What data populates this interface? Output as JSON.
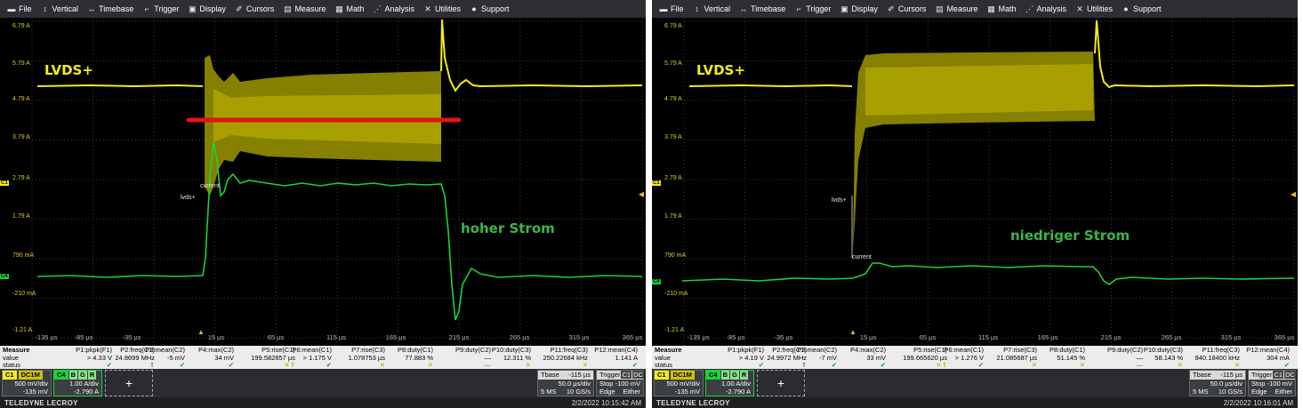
{
  "menu": [
    {
      "label": "File",
      "icon": "file-icon"
    },
    {
      "label": "Vertical",
      "icon": "vertical-icon"
    },
    {
      "label": "Timebase",
      "icon": "timebase-icon"
    },
    {
      "label": "Trigger",
      "icon": "trigger-icon"
    },
    {
      "label": "Display",
      "icon": "display-icon"
    },
    {
      "label": "Cursors",
      "icon": "cursors-icon"
    },
    {
      "label": "Measure",
      "icon": "measure-icon"
    },
    {
      "label": "Math",
      "icon": "math-icon"
    },
    {
      "label": "Analysis",
      "icon": "analysis-icon"
    },
    {
      "label": "Utilities",
      "icon": "utilities-icon"
    },
    {
      "label": "Support",
      "icon": "support-icon"
    }
  ],
  "colors": {
    "c1_yellow": "#f2ec1a",
    "c4_green": "#19d23c",
    "annotation_red": "#e01515",
    "grid": "#3a3a3a",
    "plot_bg": "#000000"
  },
  "y_axis_labels": [
    "6.79 A",
    "5.79 A",
    "4.79 A",
    "3.79 A",
    "2.79 A",
    "1.79 A",
    "790 mA",
    "-210 mA",
    "-1.21 A"
  ],
  "x_axis_labels": [
    "-135 µs",
    "-85 µs",
    "-35 µs",
    "15 µs",
    "65 µs",
    "115 µs",
    "165 µs",
    "215 µs",
    "265 µs",
    "315 µs",
    "365 µs"
  ],
  "trigger_marker": "▲",
  "trigger_level_marker": "◀",
  "channel_markers": {
    "c1": "C1",
    "c4": "C4"
  },
  "probe_labels": {
    "lvds": "lvds+",
    "current": "current"
  },
  "measure_rows": {
    "head": "Measure",
    "value": "value",
    "status": "status"
  },
  "measure_headers": [
    "P1:pkpk(F1)",
    "P2:freq(C1)",
    "P3:mean(C2)",
    "P4:max(C2)",
    "P5:rise(C1)",
    "P6:mean(C1)",
    "P7:rise(C3)",
    "P8:duty(C1)",
    "P9:duty(C2)",
    "P10:duty(C3)",
    "P11:freq(C3)",
    "P12:mean(C4)"
  ],
  "status_icons": [
    "✔",
    "⇑",
    "✔",
    "✔",
    "✕⇑",
    "✔",
    "✕",
    "✕",
    "—",
    "✕",
    "✕",
    "✔"
  ],
  "channel_c1": {
    "tag": "C1",
    "coupling": "DC1M",
    "scale": "500 mV/div",
    "offset": "-135 mV"
  },
  "channel_c4": {
    "tag": "C4",
    "badges": [
      "B",
      "G",
      "R"
    ],
    "scale": "1.00 A/div",
    "offset": "-2.790 A"
  },
  "add_button": "+",
  "timebase": {
    "label": "Tbase",
    "delay": "-115 µs",
    "scale": "50.0 µs/div",
    "samples": "5 MS",
    "rate": "10 GS/s"
  },
  "trigger": {
    "label": "Trigger",
    "badges": [
      "C1",
      "DC"
    ],
    "mode": "Stop",
    "level": "-100 mV",
    "type": "Edge",
    "slope": "Either"
  },
  "brand": "TELEDYNE LECROY",
  "screens": [
    {
      "signal_label": "LVDS+",
      "annotation": "hoher Strom",
      "measure_values": [
        "> 4.33 V",
        "24.8699 MHz",
        "-5 mV",
        "34 mV",
        "199.582857 µs",
        "> 1.175 V",
        "1.078753 µs",
        "77.883 %",
        "—",
        "12.311 %",
        "250.22684 kHz",
        "1.141 A"
      ],
      "timestamp": "2/2/2022 10:15:42 AM"
    },
    {
      "signal_label": "LVDS+",
      "annotation": "niedriger Strom",
      "measure_values": [
        "> 4.19 V",
        "24.9972 MHz",
        "-7 mV",
        "33 mV",
        "199.665620 µs",
        "> 1.276 V",
        "21.085687 µs",
        "51.145 %",
        "—",
        "58.143 %",
        "940.18400 kHz",
        "304 mA"
      ],
      "timestamp": "2/2/2022 10:16:01 AM"
    }
  ]
}
